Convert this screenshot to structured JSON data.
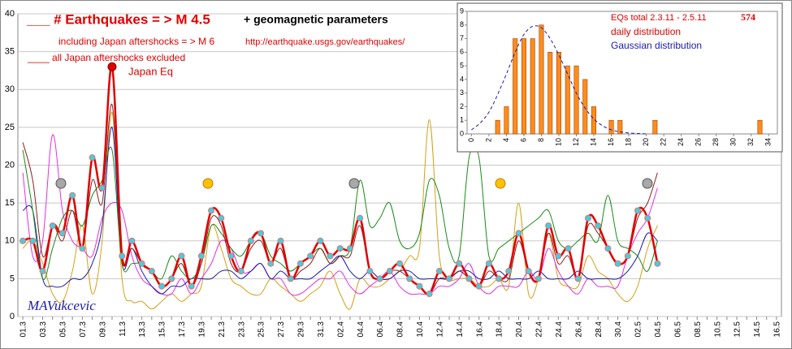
{
  "chart_data": [
    {
      "type": "line",
      "title": "___ # Earthquakes = > M 4.5",
      "subtitle": "+ geomagnetic parameters",
      "note1": "including Japan aftershocks  = > M 6",
      "url": "http://earthquake.usgs.gov/earthquakes/",
      "note2": "____  all Japan aftershocks excluded",
      "annotation": "Japan Eq",
      "signature": "MAVukcevic",
      "categories": [
        "01.3",
        null,
        "03.3",
        null,
        "05.3",
        null,
        "07.3",
        null,
        "09.3",
        null,
        "11.3",
        null,
        "13.3",
        null,
        "15.3",
        null,
        "17.3",
        null,
        "19.3",
        null,
        "21.3",
        null,
        "23.3",
        null,
        "25.3",
        null,
        "27.3",
        null,
        "29.3",
        null,
        "31.3",
        null,
        "02.4",
        null,
        "04.4",
        null,
        "06.4",
        null,
        "08.4",
        null,
        "10.4",
        null,
        "12.4",
        null,
        "14.4",
        null,
        "16.4",
        null,
        "18.4",
        null,
        "20.4",
        null,
        "22.4",
        null,
        "24.4",
        null,
        "26.4",
        null,
        "28.4",
        null,
        "30.4",
        null,
        "02.5",
        null,
        "04.5",
        null,
        "06.5",
        null,
        "08.5",
        null,
        "10.5",
        null,
        "12.5",
        null,
        "14.5",
        null,
        "16.5"
      ],
      "ylim": [
        0,
        40
      ],
      "yticks": [
        0,
        5,
        10,
        15,
        20,
        25,
        30,
        35,
        40
      ],
      "grid": true,
      "series": [
        {
          "color": "#d4a017",
          "width": 1,
          "values": [
            9,
            10,
            7,
            3,
            2,
            6,
            12,
            3,
            10,
            27,
            5,
            2,
            2,
            1,
            2,
            3,
            2,
            3,
            4,
            12,
            9,
            5,
            4,
            3,
            3,
            5,
            4,
            3,
            2,
            3,
            4,
            6,
            3,
            1,
            5,
            4,
            4,
            5,
            6,
            8,
            9,
            26,
            8,
            5,
            5,
            5,
            4,
            4,
            5,
            4,
            15,
            3,
            5,
            11,
            5,
            4,
            4,
            8,
            6,
            5,
            3,
            2,
            4,
            9,
            12,
            null,
            null,
            null,
            null,
            null,
            null,
            null,
            null,
            null,
            null,
            null,
            null
          ]
        },
        {
          "color": "#e030e0",
          "width": 1,
          "values": [
            19,
            8,
            10,
            24,
            14,
            10,
            9,
            8,
            13,
            15,
            14,
            8,
            5,
            4,
            3,
            3,
            5,
            3,
            5,
            7,
            10,
            9,
            6,
            6,
            7,
            5,
            5,
            3,
            3,
            4,
            5,
            5,
            6,
            4,
            3,
            4,
            5,
            6,
            4,
            3,
            3,
            3,
            4,
            4,
            5,
            7,
            4,
            3,
            4,
            4,
            4,
            6,
            5,
            9,
            6,
            4,
            3,
            5,
            4,
            4,
            4,
            8,
            11,
            13,
            17,
            null,
            null,
            null,
            null,
            null,
            null,
            null,
            null,
            null,
            null,
            null,
            null
          ]
        },
        {
          "color": "#1a1ab0",
          "width": 1,
          "values": [
            14,
            14,
            5,
            4,
            4,
            5,
            5,
            7,
            12,
            25,
            7,
            9,
            6,
            4,
            3,
            4,
            4,
            5,
            5,
            5,
            6,
            6,
            5,
            6,
            7,
            5,
            6,
            5,
            5,
            5,
            6,
            7,
            8,
            6,
            5,
            6,
            5,
            5,
            6,
            6,
            5,
            5,
            5,
            5,
            6,
            6,
            5,
            5,
            6,
            5,
            5,
            5,
            6,
            5,
            5,
            5,
            6,
            5,
            5,
            5,
            5,
            6,
            8,
            11,
            10,
            null,
            null,
            null,
            null,
            null,
            null,
            null,
            null,
            null,
            null,
            null,
            null
          ]
        },
        {
          "color": "#1a8a1a",
          "width": 1,
          "values": [
            22,
            14,
            5,
            9,
            13,
            14,
            12,
            16,
            18,
            22,
            7,
            7,
            7,
            6,
            5,
            8,
            6,
            5,
            7,
            12,
            11,
            9,
            8,
            10,
            11,
            8,
            7,
            6,
            7,
            8,
            9,
            7,
            8,
            9,
            18,
            12,
            13,
            15,
            10,
            9,
            11,
            18,
            16,
            9,
            8,
            21,
            21,
            8,
            9,
            10,
            11,
            12,
            13,
            14,
            10,
            9,
            10,
            11,
            10,
            16,
            10,
            9,
            8,
            6,
            10,
            null,
            null,
            null,
            null,
            null,
            null,
            null,
            null,
            null,
            null,
            null,
            null
          ]
        },
        {
          "color": "#8b2020",
          "width": 1,
          "values": [
            23,
            18,
            8,
            12,
            10,
            14,
            9,
            18,
            15,
            28,
            8,
            9,
            7,
            6,
            4,
            5,
            7,
            4,
            7,
            13,
            12,
            7,
            6,
            9,
            10,
            7,
            9,
            5,
            6,
            7,
            9,
            7,
            8,
            8,
            12,
            6,
            5,
            6,
            6,
            5,
            4,
            3,
            5,
            5,
            6,
            5,
            4,
            6,
            5,
            5,
            10,
            6,
            5,
            11,
            7,
            8,
            5,
            12,
            11,
            9,
            7,
            8,
            13,
            15,
            19,
            null,
            null,
            null,
            null,
            null,
            null,
            null,
            null,
            null,
            null,
            null,
            null
          ]
        },
        {
          "color": "#e00000",
          "width": 2.5,
          "markers": "#40d0e0",
          "values": [
            10,
            10,
            6,
            12,
            11,
            16,
            9,
            21,
            17,
            33,
            8,
            10,
            7,
            6,
            4,
            5,
            8,
            4,
            8,
            14,
            13,
            8,
            6,
            10,
            11,
            7,
            10,
            5,
            7,
            8,
            10,
            8,
            9,
            9,
            13,
            6,
            5,
            6,
            7,
            5,
            4,
            3,
            6,
            5,
            7,
            5,
            4,
            7,
            5,
            6,
            11,
            6,
            5,
            12,
            8,
            9,
            5,
            13,
            12,
            9,
            7,
            8,
            14,
            13,
            7,
            null,
            null,
            null,
            null,
            null,
            null,
            null,
            null,
            null,
            null,
            null,
            null
          ]
        }
      ]
    },
    {
      "type": "bar",
      "title": "EQs total  2.3.11 -   2.5.11",
      "total": 574,
      "x": [
        0,
        1,
        2,
        3,
        4,
        5,
        6,
        7,
        8,
        9,
        10,
        11,
        12,
        13,
        14,
        15,
        16,
        17,
        18,
        19,
        20,
        21,
        22,
        23,
        24,
        25,
        26,
        27,
        28,
        29,
        30,
        31,
        32,
        33,
        34
      ],
      "xlim": [
        -0.5,
        35
      ],
      "xticks": [
        0,
        2,
        4,
        6,
        8,
        10,
        12,
        14,
        16,
        18,
        20,
        22,
        24,
        26,
        28,
        30,
        32,
        34
      ],
      "ylim": [
        0,
        9
      ],
      "yticks": [
        0,
        1,
        2,
        3,
        4,
        5,
        6,
        7,
        8,
        9
      ],
      "series": [
        {
          "name": "daily distribution",
          "color": "#ff8c1a",
          "values": [
            0,
            0,
            0,
            1,
            2,
            7,
            7,
            7,
            8,
            6,
            6,
            5,
            5,
            4,
            2,
            0,
            1,
            1,
            0,
            0,
            0,
            1,
            0,
            0,
            0,
            0,
            0,
            0,
            0,
            0,
            0,
            0,
            0,
            1,
            0
          ]
        },
        {
          "name": "Gaussian distribution",
          "color": "#1a1ab0",
          "type": "line",
          "values": [
            0.3,
            0.8,
            1.6,
            2.9,
            4.4,
            6,
            7.3,
            7.9,
            7.8,
            7,
            5.8,
            4.4,
            3,
            1.9,
            1.1,
            0.6,
            0.3,
            0.15,
            0.07,
            0.03,
            0,
            null,
            null,
            null,
            null,
            null,
            null,
            null,
            null,
            null,
            null,
            null,
            null,
            null,
            null
          ]
        }
      ]
    }
  ]
}
